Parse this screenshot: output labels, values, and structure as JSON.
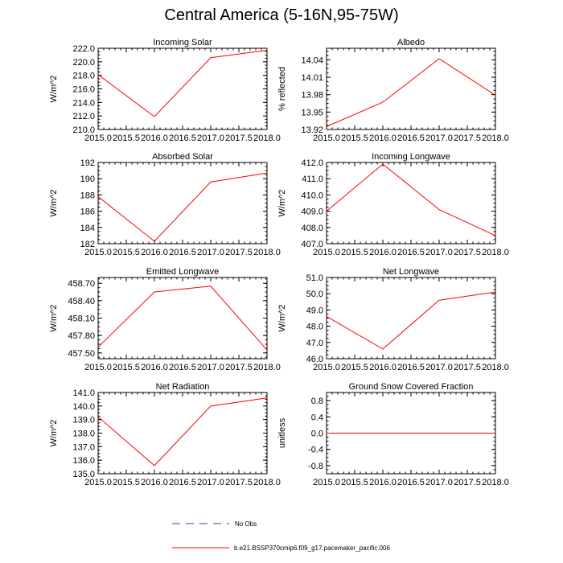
{
  "page_title": "Central America (5-16N,95-75W)",
  "colors": {
    "series": "#ff0000",
    "obs": "#3a3aa0",
    "axis": "#000000"
  },
  "legend": {
    "entries": [
      {
        "label": "No Obs",
        "style": "dashed",
        "color": "#3a3aa0"
      },
      {
        "label": "b.e21.BSSP370cmip6.f09_g17.pacemaker_pacific.006",
        "style": "solid",
        "color": "#ff0000"
      }
    ]
  },
  "chart_data": [
    {
      "type": "line",
      "title": "Incoming Solar",
      "xlabel": "",
      "ylabel": "W/m^2",
      "x": [
        2015,
        2016,
        2017,
        2018
      ],
      "values": [
        218.1,
        211.9,
        220.6,
        221.7
      ],
      "xlim": [
        2015,
        2018
      ],
      "ylim": [
        210,
        222
      ],
      "xticks": [
        "2015.0",
        "2015.5",
        "2016.0",
        "2016.5",
        "2017.0",
        "2017.5",
        "2018.0"
      ],
      "yticks": [
        210,
        212,
        214,
        216,
        218,
        220,
        222
      ],
      "yticklabels": [
        "210.0",
        "212.0",
        "214.0",
        "216.0",
        "218.0",
        "220.0",
        "222.0"
      ]
    },
    {
      "type": "line",
      "title": "Albedo",
      "xlabel": "",
      "ylabel": "% reflected",
      "x": [
        2015,
        2016,
        2017,
        2018
      ],
      "values": [
        13.925,
        13.967,
        14.042,
        13.979
      ],
      "xlim": [
        2015,
        2018
      ],
      "ylim": [
        13.92,
        14.06
      ],
      "xticks": [
        "2015.0",
        "2015.5",
        "2016.0",
        "2016.5",
        "2017.0",
        "2017.5",
        "2018.0"
      ],
      "yticks": [
        13.92,
        13.95,
        13.98,
        14.01,
        14.04
      ],
      "yticklabels": [
        "13.92",
        "13.95",
        "13.98",
        "14.01",
        "14.04"
      ]
    },
    {
      "type": "line",
      "title": "Absorbed Solar",
      "xlabel": "",
      "ylabel": "W/m^2",
      "x": [
        2015,
        2016,
        2017,
        2018
      ],
      "values": [
        187.8,
        182.3,
        189.6,
        190.7
      ],
      "xlim": [
        2015,
        2018
      ],
      "ylim": [
        182,
        192
      ],
      "xticks": [
        "2015.0",
        "2015.5",
        "2016.0",
        "2016.5",
        "2017.0",
        "2017.5",
        "2018.0"
      ],
      "yticks": [
        182,
        184,
        186,
        188,
        190,
        192
      ],
      "yticklabels": [
        "182",
        "184",
        "186",
        "188",
        "190",
        "192"
      ]
    },
    {
      "type": "line",
      "title": "Incoming Longwave",
      "xlabel": "",
      "ylabel": "W/m^2",
      "x": [
        2015,
        2016,
        2017,
        2018
      ],
      "values": [
        409.0,
        411.9,
        409.1,
        407.5
      ],
      "xlim": [
        2015,
        2018
      ],
      "ylim": [
        407,
        412
      ],
      "xticks": [
        "2015.0",
        "2015.5",
        "2016.0",
        "2016.5",
        "2017.0",
        "2017.5",
        "2018.0"
      ],
      "yticks": [
        407,
        408,
        409,
        410,
        411,
        412
      ],
      "yticklabels": [
        "407.0",
        "408.0",
        "409.0",
        "410.0",
        "411.0",
        "412.0"
      ]
    },
    {
      "type": "line",
      "title": "Emitted Longwave",
      "xlabel": "",
      "ylabel": "W/m^2",
      "x": [
        2015,
        2016,
        2017,
        2018
      ],
      "values": [
        457.6,
        458.55,
        458.65,
        457.55
      ],
      "xlim": [
        2015,
        2018
      ],
      "ylim": [
        457.4,
        458.8
      ],
      "xticks": [
        "2015.0",
        "2015.5",
        "2016.0",
        "2016.5",
        "2017.0",
        "2017.5",
        "2018.0"
      ],
      "yticks": [
        457.5,
        457.8,
        458.1,
        458.4,
        458.7
      ],
      "yticklabels": [
        "457.50",
        "457.80",
        "458.10",
        "458.40",
        "458.70"
      ]
    },
    {
      "type": "line",
      "title": "Net Longwave",
      "xlabel": "",
      "ylabel": "W/m^2",
      "x": [
        2015,
        2016,
        2017,
        2018
      ],
      "values": [
        48.6,
        46.6,
        49.6,
        50.1
      ],
      "xlim": [
        2015,
        2018
      ],
      "ylim": [
        46,
        51
      ],
      "xticks": [
        "2015.0",
        "2015.5",
        "2016.0",
        "2016.5",
        "2017.0",
        "2017.5",
        "2018.0"
      ],
      "yticks": [
        46,
        47,
        48,
        49,
        50,
        51
      ],
      "yticklabels": [
        "46.0",
        "47.0",
        "48.0",
        "49.0",
        "50.0",
        "51.0"
      ]
    },
    {
      "type": "line",
      "title": "Net Radiation",
      "xlabel": "",
      "ylabel": "W/m^2",
      "x": [
        2015,
        2016,
        2017,
        2018
      ],
      "values": [
        139.2,
        135.6,
        140.0,
        140.6
      ],
      "xlim": [
        2015,
        2018
      ],
      "ylim": [
        135,
        141
      ],
      "xticks": [
        "2015.0",
        "2015.5",
        "2016.0",
        "2016.5",
        "2017.0",
        "2017.5",
        "2018.0"
      ],
      "yticks": [
        135,
        136,
        137,
        138,
        139,
        140,
        141
      ],
      "yticklabels": [
        "135.0",
        "136.0",
        "137.0",
        "138.0",
        "139.0",
        "140.0",
        "141.0"
      ]
    },
    {
      "type": "line",
      "title": "Ground Snow Covered Fraction",
      "xlabel": "",
      "ylabel": "unitless",
      "x": [
        2015,
        2016,
        2017,
        2018
      ],
      "values": [
        0.0,
        0.0,
        0.0,
        0.0
      ],
      "xlim": [
        2015,
        2018
      ],
      "ylim": [
        -1.0,
        1.0
      ],
      "xticks": [
        "2015.0",
        "2015.5",
        "2016.0",
        "2016.5",
        "2017.0",
        "2017.5",
        "2018.0"
      ],
      "yticks": [
        -0.8,
        -0.4,
        0.0,
        0.4,
        0.8
      ],
      "yticklabels": [
        "-0.8",
        "-0.4",
        "0.0",
        "0.4",
        "0.8"
      ]
    }
  ]
}
